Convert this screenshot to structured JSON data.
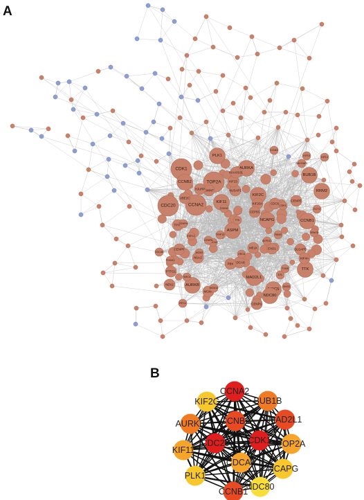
{
  "panels": {
    "a": {
      "label": "A"
    },
    "b": {
      "label": "B"
    }
  },
  "colors": {
    "up_node": "#c8816a",
    "up_node_stroke": "#b36d56",
    "down_node": "#8f9ed0",
    "down_node_stroke": "#7485bb",
    "edge_a": "#b9b9b9",
    "edge_b": "#111111",
    "hub_dark_red": "#e01e1e",
    "hub_red": "#e84a22",
    "hub_orange": "#f07b22",
    "hub_light_orange": "#f6a52a",
    "hub_yellow": "#f8c72c",
    "hub_pale_yellow": "#f9dd3a"
  },
  "network_a": {
    "labeled_nodes": [
      {
        "label": "CDK1",
        "size": "xl"
      },
      {
        "label": "CCNA2",
        "size": "xl"
      },
      {
        "label": "CDC20",
        "size": "xl"
      },
      {
        "label": "TOP2A",
        "size": "xl"
      },
      {
        "label": "AURKA",
        "size": "l"
      },
      {
        "label": "BUB1B",
        "size": "l"
      },
      {
        "label": "RRM2",
        "size": "l"
      },
      {
        "label": "CCNB2",
        "size": "l"
      },
      {
        "label": "PLK1",
        "size": "l"
      },
      {
        "label": "KIF11",
        "size": "l"
      },
      {
        "label": "NCAPG",
        "size": "l"
      },
      {
        "label": "KIF2C",
        "size": "l"
      },
      {
        "label": "CCNB1",
        "size": "l"
      },
      {
        "label": "ASPM",
        "size": "l"
      },
      {
        "label": "TTK",
        "size": "l"
      },
      {
        "label": "MAD2L1",
        "size": "l"
      },
      {
        "label": "BIRC5",
        "size": "l"
      },
      {
        "label": "AURKB",
        "size": "l"
      },
      {
        "label": "NDC80",
        "size": "l"
      },
      {
        "label": "UBE2C",
        "size": "m"
      },
      {
        "label": "TPX2",
        "size": "m"
      },
      {
        "label": "MELK",
        "size": "m"
      },
      {
        "label": "CDCA8",
        "size": "m"
      },
      {
        "label": "PBK",
        "size": "m"
      },
      {
        "label": "DLGAP5",
        "size": "m"
      },
      {
        "label": "NUSAP1",
        "size": "m"
      },
      {
        "label": "KIF20A",
        "size": "m"
      },
      {
        "label": "CENPF",
        "size": "m"
      },
      {
        "label": "CEP55",
        "size": "m"
      },
      {
        "label": "KIF4A",
        "size": "m"
      },
      {
        "label": "CDC6",
        "size": "m"
      },
      {
        "label": "CENPE",
        "size": "m"
      },
      {
        "label": "KIF23",
        "size": "m"
      },
      {
        "label": "KIAA0101",
        "size": "m"
      },
      {
        "label": "ZWINT",
        "size": "m"
      },
      {
        "label": "HJURP",
        "size": "m"
      },
      {
        "label": "PTTG1",
        "size": "m"
      },
      {
        "label": "CCNE2",
        "size": "s"
      },
      {
        "label": "KIF15",
        "size": "s"
      },
      {
        "label": "KIF14",
        "size": "s"
      },
      {
        "label": "RACGAP1",
        "size": "s"
      },
      {
        "label": "NEK2",
        "size": "m"
      },
      {
        "label": "NUF2",
        "size": "m"
      },
      {
        "label": "CENPU",
        "size": "m"
      },
      {
        "label": "MCM2",
        "size": "s"
      },
      {
        "label": "MCM4",
        "size": "m"
      },
      {
        "label": "EXO1",
        "size": "m"
      },
      {
        "label": "RFC4",
        "size": "s"
      },
      {
        "label": "DTL",
        "size": "s"
      },
      {
        "label": "TYMS",
        "size": "s"
      },
      {
        "label": "SPAG5",
        "size": "s"
      },
      {
        "label": "ECT2",
        "size": "s"
      },
      {
        "label": "ESPL1",
        "size": "s"
      },
      {
        "label": "CDKN3",
        "size": "s"
      },
      {
        "label": "CDCA5",
        "size": "s"
      },
      {
        "label": "FOXM1",
        "size": "s"
      },
      {
        "label": "CENPM",
        "size": "s"
      },
      {
        "label": "CDK1 ",
        "size": "s"
      },
      {
        "label": "ORC6",
        "size": "s"
      },
      {
        "label": "SMC4",
        "size": "s"
      },
      {
        "label": "GINS2",
        "size": "s"
      },
      {
        "label": "MCM10",
        "size": "s"
      },
      {
        "label": "CDCA3",
        "size": "s"
      },
      {
        "label": "CENPA",
        "size": "s"
      },
      {
        "label": "FANCI",
        "size": "s"
      },
      {
        "label": "DEPDC1",
        "size": "s"
      },
      {
        "label": "TRIP13",
        "size": "s"
      },
      {
        "label": "TTK ",
        "size": "s"
      }
    ]
  },
  "network_b": {
    "nodes": [
      {
        "label": "CCNA2",
        "color": "hub_dark_red"
      },
      {
        "label": "BUB1B",
        "color": "hub_orange"
      },
      {
        "label": "MAD2L1",
        "color": "hub_red"
      },
      {
        "label": "TOP2A",
        "color": "hub_light_orange"
      },
      {
        "label": "NCAPG",
        "color": "hub_yellow"
      },
      {
        "label": "NDC80",
        "color": "hub_pale_yellow"
      },
      {
        "label": "CCNB1",
        "color": "hub_red"
      },
      {
        "label": "PLK1",
        "color": "hub_yellow"
      },
      {
        "label": "KIF11",
        "color": "hub_light_orange"
      },
      {
        "label": "AURKB",
        "color": "hub_orange"
      },
      {
        "label": "KIF2C",
        "color": "hub_yellow"
      },
      {
        "label": "CCNB2",
        "color": "hub_red"
      },
      {
        "label": "CDK1",
        "color": "hub_dark_red"
      },
      {
        "label": "CDCA8",
        "color": "hub_light_orange"
      },
      {
        "label": "CDC20",
        "color": "hub_dark_red"
      }
    ]
  }
}
